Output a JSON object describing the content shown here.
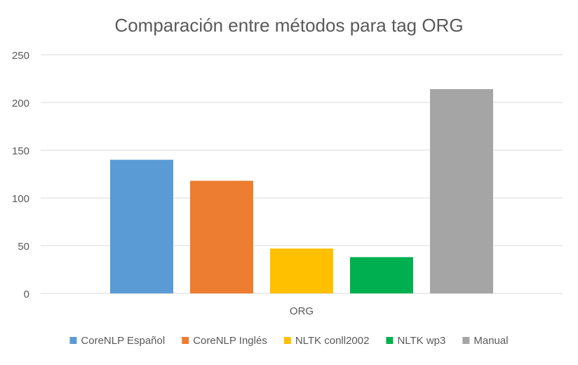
{
  "chart_data": {
    "type": "bar",
    "title": "Comparación entre métodos para tag ORG",
    "xlabel": "",
    "ylabel": "",
    "categories": [
      "ORG"
    ],
    "ylim": [
      0,
      250
    ],
    "y_ticks": [
      "0",
      "50",
      "100",
      "150",
      "200",
      "250"
    ],
    "grid": true,
    "legend_position": "bottom",
    "series": [
      {
        "name": "CoreNLP Español",
        "values": [
          140
        ],
        "color": "#5B9BD5"
      },
      {
        "name": "CoreNLP Inglés",
        "values": [
          118
        ],
        "color": "#ED7D31"
      },
      {
        "name": "NLTK conll2002",
        "values": [
          47
        ],
        "color": "#FFC000"
      },
      {
        "name": "NLTK wp3",
        "values": [
          38
        ],
        "color": "#00B050"
      },
      {
        "name": "Manual",
        "values": [
          214
        ],
        "color": "#A5A5A5"
      }
    ]
  }
}
